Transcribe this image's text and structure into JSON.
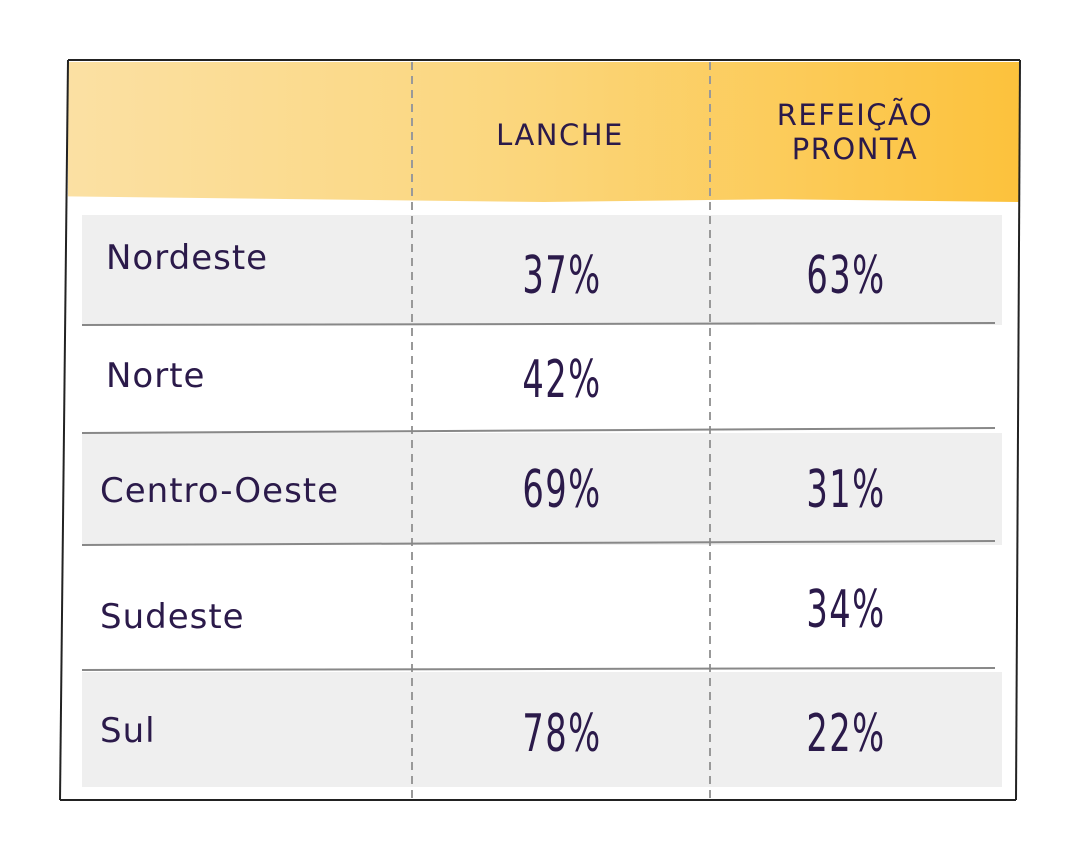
{
  "columns": {
    "col1": "LANCHE",
    "col2_line1": "REFEIÇÃO",
    "col2_line2": "PRONTA"
  },
  "rows": [
    {
      "region": "Nordeste",
      "lanche": "37%",
      "refeicao": "63%"
    },
    {
      "region": "Norte",
      "lanche": "42%",
      "refeicao": ""
    },
    {
      "region": "Centro-Oeste",
      "lanche": "69%",
      "refeicao": "31%"
    },
    {
      "region": "Sudeste",
      "lanche": "",
      "refeicao": "34%"
    },
    {
      "region": "Sul",
      "lanche": "78%",
      "refeicao": "22%"
    }
  ],
  "colors": {
    "header_light": "#fbe0a3",
    "header_dark": "#fcc23c",
    "text": "#2b1a4a",
    "row_shade": "#efefef"
  }
}
